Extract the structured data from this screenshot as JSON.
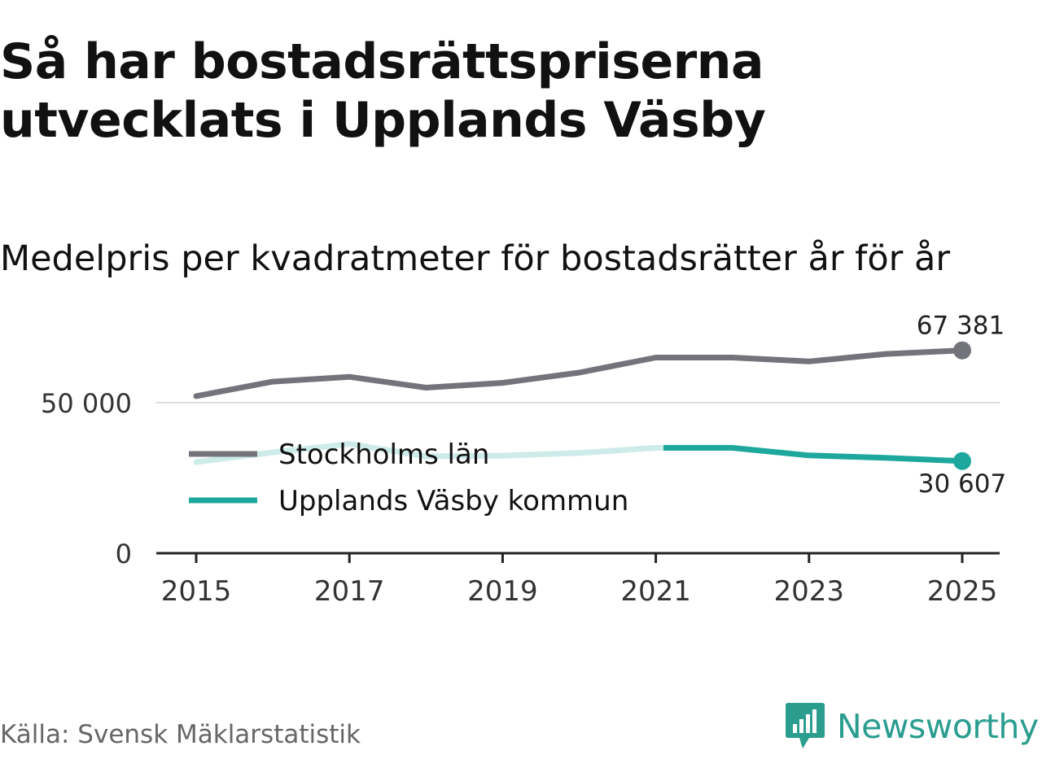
{
  "title": "Så har bostadsrättspriserna utvecklats i Upplands Väsby",
  "subtitle": "Medelpris per kvadratmeter för bostadsrätter år för år",
  "source": "Källa: Svensk Mäklarstatistik",
  "brand": "Newsworthy",
  "colors": {
    "stockholm": "#73737b",
    "vasby": "#1ea89d",
    "vasby_faded": "#cdebe8",
    "grid": "#dddddd",
    "axis": "#222222"
  },
  "chart_data": {
    "type": "line",
    "x": [
      2015,
      2016,
      2017,
      2018,
      2019,
      2020,
      2021,
      2022,
      2023,
      2024,
      2025
    ],
    "x_ticks": [
      "2015",
      "2017",
      "2019",
      "2021",
      "2023",
      "2025"
    ],
    "y_ticks": [
      {
        "value": 0,
        "label": "0"
      },
      {
        "value": 50000,
        "label": "50 000"
      }
    ],
    "ylim": [
      0,
      75000
    ],
    "xlim": [
      2015,
      2025
    ],
    "xlabel": "",
    "ylabel": "",
    "legend_position": "center-left",
    "series": [
      {
        "name": "Stockholms län",
        "color_key": "stockholm",
        "values": [
          52200,
          57000,
          58600,
          55000,
          56600,
          60000,
          65000,
          65000,
          63700,
          66200,
          67381
        ],
        "end_label": "67 381"
      },
      {
        "name": "Upplands Väsby kommun",
        "color_key": "vasby",
        "values": [
          30300,
          33500,
          36300,
          32200,
          32400,
          33300,
          35000,
          35000,
          32500,
          31700,
          30607
        ],
        "faded_until": 2021.1,
        "end_label": "30 607"
      }
    ]
  }
}
